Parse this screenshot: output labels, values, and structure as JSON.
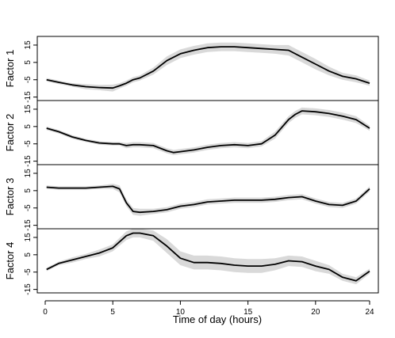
{
  "chart_data": {
    "type": "line",
    "xlabel": "Time of day (hours)",
    "xlim": [
      0,
      24
    ],
    "x_ticks": [
      0,
      5,
      10,
      15,
      20,
      24
    ],
    "y_ticks": [
      15,
      5,
      -5,
      -15
    ],
    "y_tick_labels": [
      "15",
      "5",
      "-5",
      "-15"
    ],
    "grid": false,
    "line_color": "#000000",
    "band_color": "#d9d9d9",
    "panels": [
      {
        "ylabel": "Factor 1",
        "ylim": [
          -17,
          20
        ],
        "x": [
          0.1,
          1,
          2,
          3,
          4,
          5,
          5.5,
          6,
          6.5,
          7,
          8,
          9,
          10,
          11,
          12,
          13,
          14,
          15,
          16,
          17,
          18,
          19,
          20,
          21,
          22,
          23,
          24
        ],
        "y": [
          -5,
          -6.5,
          -8,
          -9,
          -9.5,
          -9.8,
          -8.5,
          -7,
          -5,
          -4,
          0,
          6,
          10,
          12,
          13.5,
          14,
          14,
          13.5,
          13,
          12.5,
          12,
          8,
          4,
          0,
          -3,
          -4.5,
          -7
        ],
        "band": [
          1,
          1,
          1,
          1.5,
          1.5,
          2,
          1.5,
          1.5,
          1.5,
          1.5,
          2,
          2.5,
          2.5,
          2.5,
          2.5,
          2.5,
          2.5,
          2.5,
          2.5,
          2.5,
          3,
          3,
          3,
          2.5,
          2,
          2,
          1.5
        ]
      },
      {
        "ylabel": "Factor 2",
        "ylim": [
          -17,
          20
        ],
        "x": [
          0.1,
          1,
          2,
          3,
          4,
          5,
          5.5,
          6,
          6.5,
          7,
          8,
          9,
          9.5,
          10,
          11,
          12,
          13,
          14,
          15,
          16,
          17,
          18,
          18.5,
          19,
          20,
          21,
          22,
          23,
          24
        ],
        "y": [
          4,
          2,
          -1,
          -3,
          -4.5,
          -5,
          -5,
          -6,
          -5.5,
          -5.5,
          -6,
          -9,
          -10,
          -9.5,
          -8.5,
          -7,
          -6,
          -5.5,
          -6,
          -5,
          0,
          9,
          12,
          14,
          13.5,
          12.5,
          11,
          9,
          4
        ],
        "band": [
          1,
          1,
          1,
          1,
          1,
          1,
          1,
          1.5,
          1.5,
          1.5,
          1.5,
          1.5,
          1.5,
          1.5,
          1.5,
          1.5,
          1.5,
          1.5,
          1.5,
          1.5,
          2,
          2,
          2,
          2,
          2,
          2,
          2,
          2,
          1.5
        ]
      },
      {
        "ylabel": "Factor 3",
        "ylim": [
          -17,
          20
        ],
        "x": [
          0.1,
          1,
          2,
          3,
          4,
          5,
          5.5,
          6,
          6.5,
          7,
          8,
          9,
          10,
          11,
          12,
          13,
          14,
          15,
          16,
          17,
          18,
          19,
          20,
          21,
          22,
          23,
          24
        ],
        "y": [
          7,
          6.5,
          6.5,
          6.5,
          7,
          7.5,
          6,
          -2,
          -7,
          -7.5,
          -7,
          -6,
          -4,
          -3,
          -1.5,
          -1,
          -0.5,
          -0.5,
          -0.5,
          0,
          1,
          1.5,
          -1,
          -3,
          -3.5,
          -1,
          6
        ],
        "band": [
          1,
          1,
          1,
          1,
          1,
          1.5,
          2,
          2,
          2,
          2,
          1.5,
          1.5,
          1.5,
          1.5,
          1.5,
          1.5,
          1.5,
          1.5,
          1.5,
          1.5,
          1.5,
          1.5,
          1.5,
          1.5,
          1.5,
          1.5,
          1.5
        ]
      },
      {
        "ylabel": "Factor 4",
        "ylim": [
          -17,
          20
        ],
        "x": [
          0.1,
          1,
          2,
          3,
          4,
          5,
          6,
          6.5,
          7,
          8,
          9,
          10,
          11,
          12,
          13,
          14,
          15,
          16,
          17,
          18,
          19,
          20,
          21,
          22,
          23,
          24
        ],
        "y": [
          -3.5,
          0,
          2,
          4,
          6,
          9,
          16,
          17.5,
          17.5,
          16,
          10,
          3,
          0.5,
          0.5,
          0,
          -1,
          -1.5,
          -1.5,
          -0.5,
          1.5,
          1,
          -1.5,
          -3.5,
          -8,
          -10,
          -4.5
        ],
        "band": [
          1,
          1,
          1.5,
          1.5,
          2,
          2,
          2.5,
          2.5,
          2.5,
          3,
          4,
          4,
          4,
          4,
          4,
          4,
          4,
          4,
          3.5,
          3,
          3,
          3,
          2.5,
          2,
          2,
          1.5
        ]
      }
    ]
  }
}
